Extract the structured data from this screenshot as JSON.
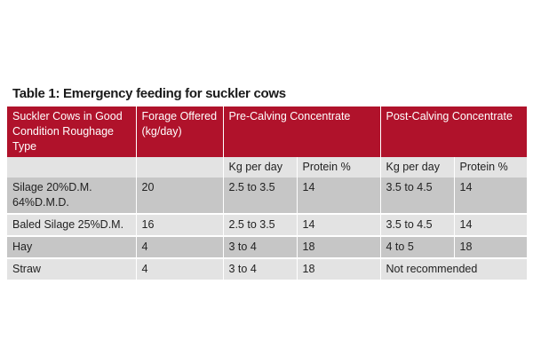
{
  "title": "Table 1: Emergency feeding for suckler cows",
  "headers": {
    "col1": "Suckler Cows in Good Condition Roughage Type",
    "col2": "Forage Offered (kg/day)",
    "pre_calving": "Pre-Calving Concentrate",
    "post_calving": "Post-Calving Concentrate"
  },
  "subheaders": [
    "",
    "",
    "Kg per day",
    "Protein %",
    "Kg per day",
    "Protein %"
  ],
  "rows": [
    {
      "type": "Silage 20%D.M. 64%D.M.D.",
      "forage": "20",
      "pre_kg": "2.5 to 3.5",
      "pre_protein": "14",
      "post_kg": "3.5 to 4.5",
      "post_protein": "14"
    },
    {
      "type": "Baled Silage 25%D.M.",
      "forage": "16",
      "pre_kg": "2.5 to 3.5",
      "pre_protein": "14",
      "post_kg": "3.5 to 4.5",
      "post_protein": "14"
    },
    {
      "type": "Hay",
      "forage": "4",
      "pre_kg": "3 to 4",
      "pre_protein": "18",
      "post_kg": "4 to 5",
      "post_protein": "18"
    },
    {
      "type": "Straw",
      "forage": "4",
      "pre_kg": "3 to 4",
      "pre_protein": "18",
      "post_span": "Not recommended"
    }
  ],
  "colors": {
    "header_bg": "#b0122b",
    "row_dark": "#c6c6c6",
    "row_light": "#e3e3e3"
  }
}
